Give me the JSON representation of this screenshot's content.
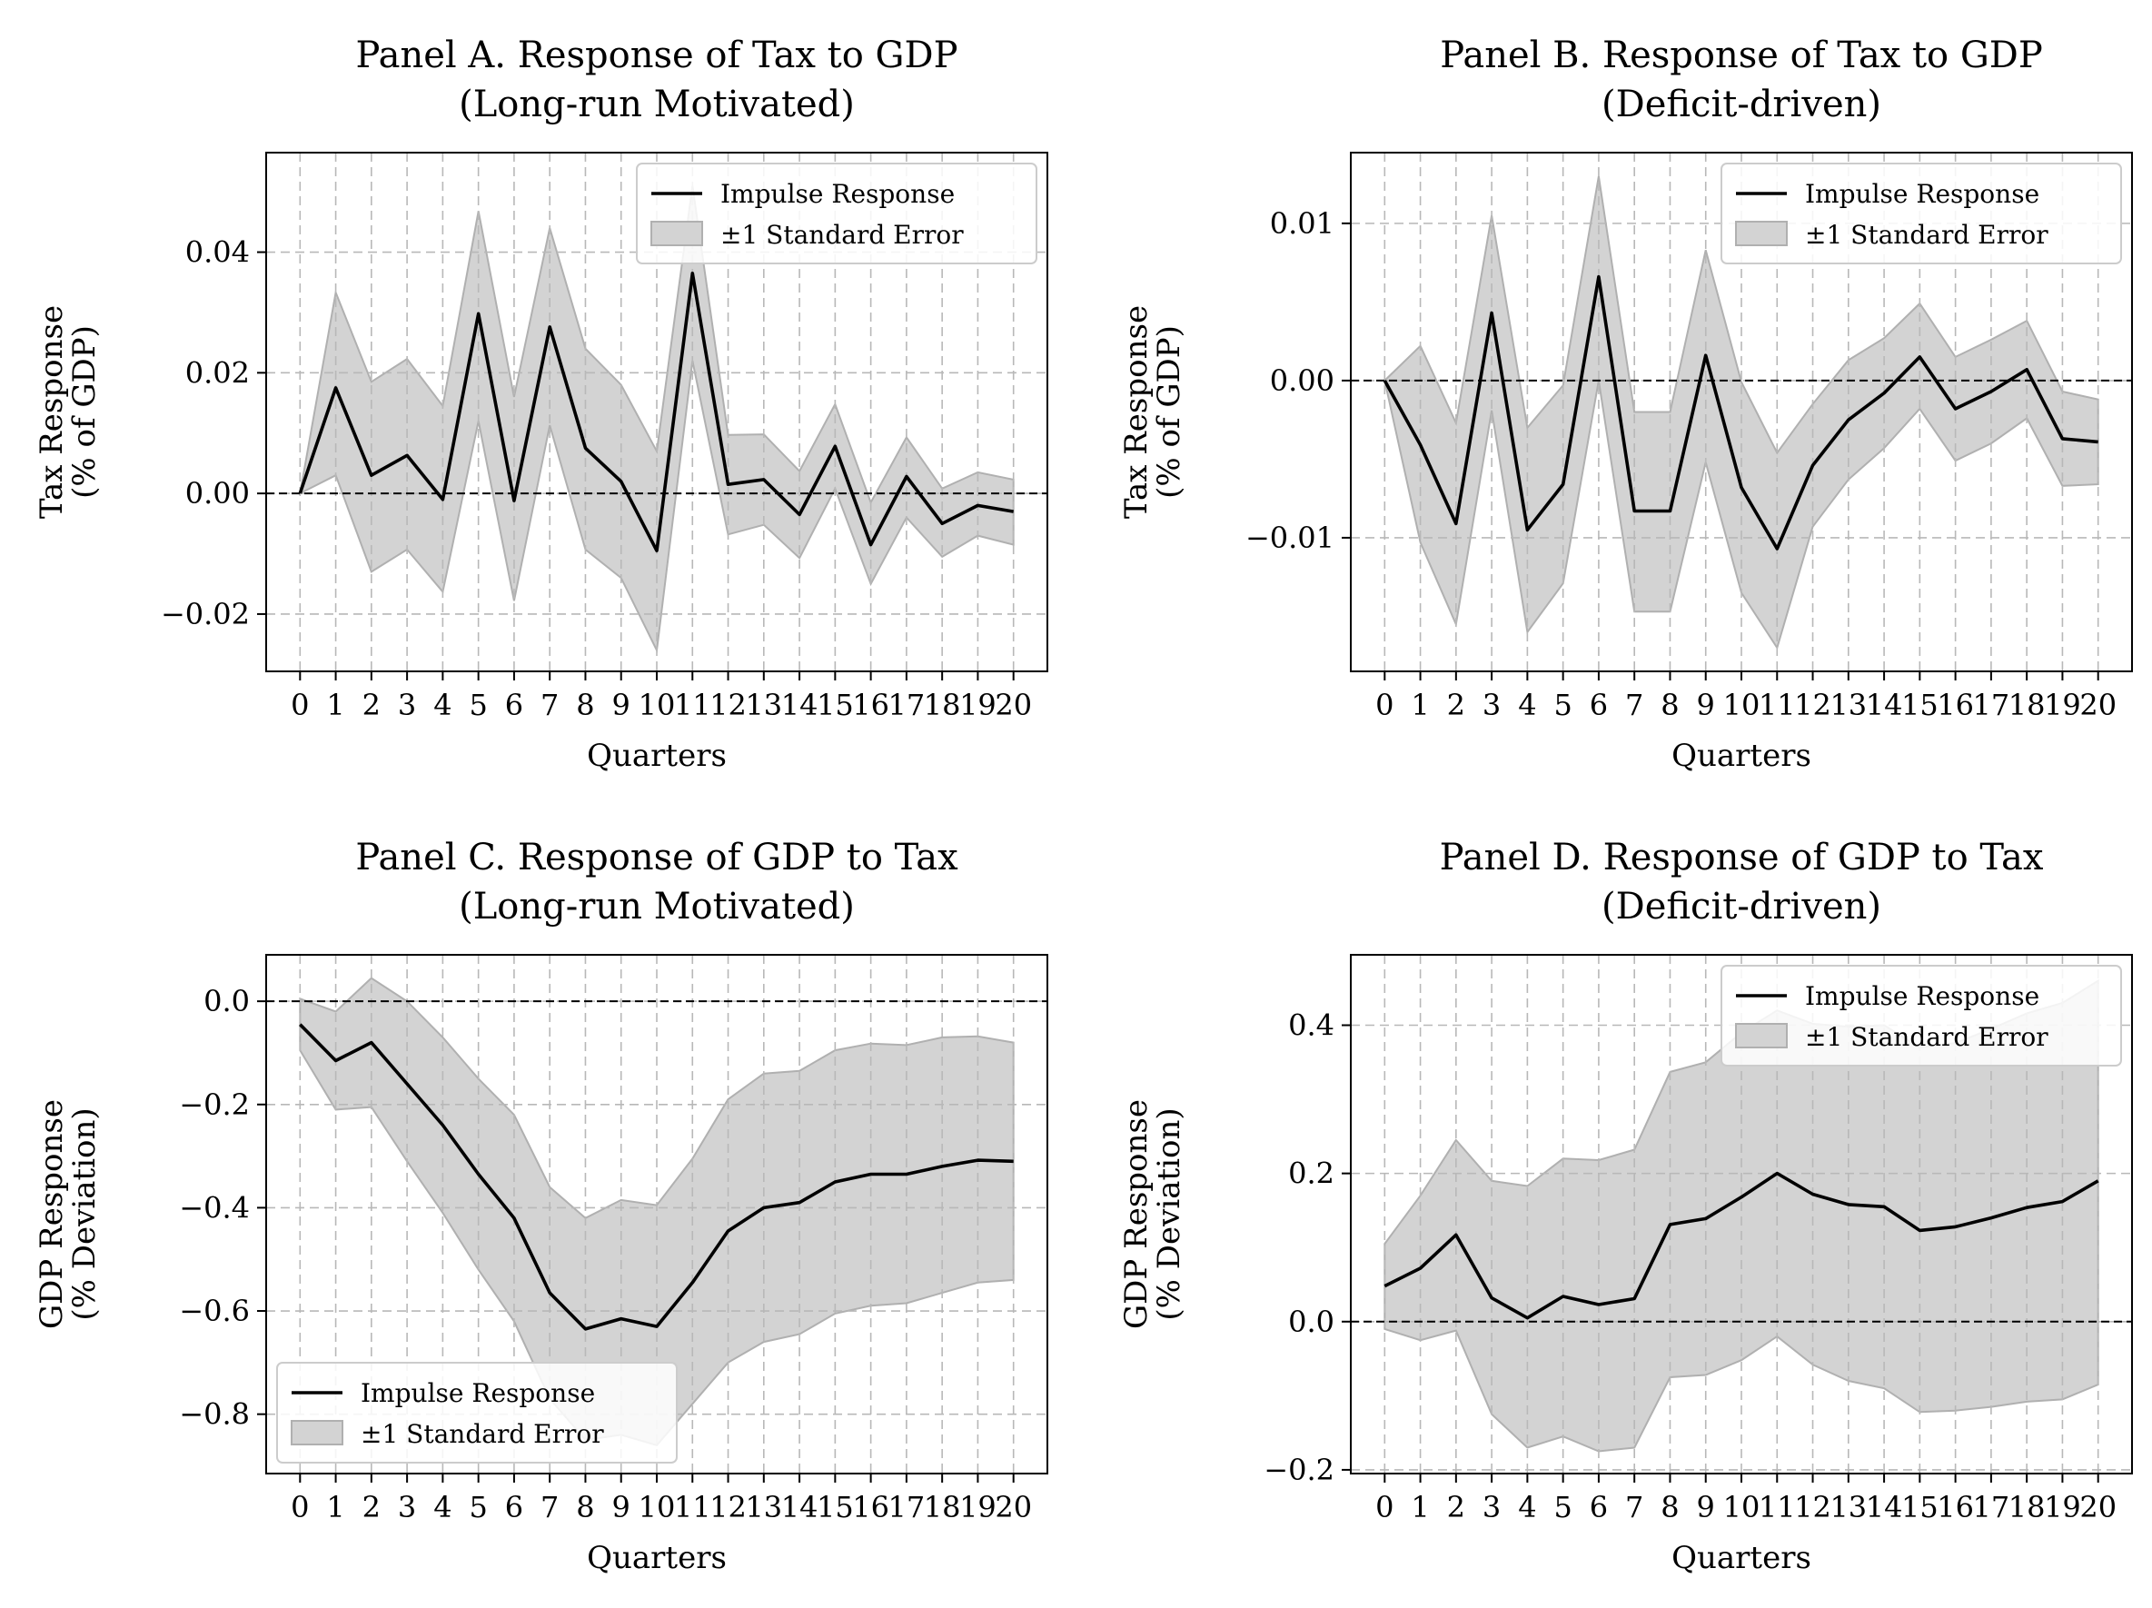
{
  "figure": {
    "panels": [
      {
        "id": "A",
        "title_line1": "Panel A. Response of Tax to GDP",
        "title_line2": "(Long-run Motivated)",
        "xlabel": "Quarters",
        "ylabel_line1": "Tax Response",
        "ylabel_line2": "(% of GDP)",
        "legend": {
          "line_label": "Impulse Response",
          "band_label": "±1 Standard Error",
          "placement": "top-right"
        },
        "yticks": [
          -0.02,
          0.0,
          0.02,
          0.04
        ],
        "ytick_labels": [
          "−0.02",
          "0.00",
          "0.02",
          "0.04"
        ]
      },
      {
        "id": "B",
        "title_line1": "Panel B. Response of Tax to GDP",
        "title_line2": "(Deficit-driven)",
        "xlabel": "Quarters",
        "ylabel_line1": "Tax Response",
        "ylabel_line2": "(% of GDP)",
        "legend": {
          "line_label": "Impulse Response",
          "band_label": "±1 Standard Error",
          "placement": "top-right"
        },
        "yticks": [
          -0.01,
          0.0,
          0.01
        ],
        "ytick_labels": [
          "−0.01",
          "0.00",
          "0.01"
        ]
      },
      {
        "id": "C",
        "title_line1": "Panel C. Response of GDP to Tax",
        "title_line2": "(Long-run Motivated)",
        "xlabel": "Quarters",
        "ylabel_line1": "GDP Response",
        "ylabel_line2": "(% Deviation)",
        "legend": {
          "line_label": "Impulse Response",
          "band_label": "±1 Standard Error",
          "placement": "bottom-left"
        },
        "yticks": [
          -0.8,
          -0.6,
          -0.4,
          -0.2,
          0.0
        ],
        "ytick_labels": [
          "−0.8",
          "−0.6",
          "−0.4",
          "−0.2",
          "0.0"
        ]
      },
      {
        "id": "D",
        "title_line1": "Panel D. Response of GDP to Tax",
        "title_line2": "(Deficit-driven)",
        "xlabel": "Quarters",
        "ylabel_line1": "GDP Response",
        "ylabel_line2": "(% Deviation)",
        "legend": {
          "line_label": "Impulse Response",
          "band_label": "±1 Standard Error",
          "placement": "top-right"
        },
        "yticks": [
          -0.2,
          0.0,
          0.2,
          0.4
        ],
        "ytick_labels": [
          "−0.2",
          "0.0",
          "0.2",
          "0.4"
        ]
      }
    ],
    "xtick_labels": [
      "0",
      "1",
      "2",
      "3",
      "4",
      "5",
      "6",
      "7",
      "8",
      "9",
      "10",
      "11",
      "12",
      "13",
      "14",
      "15",
      "16",
      "17",
      "18",
      "19",
      "20"
    ],
    "colors": {
      "line": "#000000",
      "band": "#d3d3d3",
      "band_edge": "#b0b0b0",
      "grid": "#b8b8b8",
      "zero_line": "#000000"
    }
  },
  "chart_data": [
    {
      "type": "line",
      "panel": "A",
      "x": [
        0,
        1,
        2,
        3,
        4,
        5,
        6,
        7,
        8,
        9,
        10,
        11,
        12,
        13,
        14,
        15,
        16,
        17,
        18,
        19,
        20
      ],
      "series": [
        {
          "name": "Impulse Response",
          "values": [
            0.0,
            0.0175,
            0.003,
            0.0063,
            -0.001,
            0.0298,
            -0.0012,
            0.0276,
            0.0075,
            0.002,
            -0.0095,
            0.0365,
            0.0015,
            0.0023,
            -0.0035,
            0.0078,
            -0.0085,
            0.0028,
            -0.005,
            -0.002,
            -0.003
          ]
        },
        {
          "name": "±1 Standard Error",
          "lower": [
            0.0,
            0.003,
            -0.013,
            -0.0093,
            -0.0163,
            0.012,
            -0.0178,
            0.0113,
            -0.0093,
            -0.014,
            -0.026,
            0.022,
            -0.0068,
            -0.0052,
            -0.0107,
            0.0008,
            -0.015,
            -0.004,
            -0.0105,
            -0.007,
            -0.0085
          ],
          "upper": [
            0.0,
            0.0333,
            0.0185,
            0.0223,
            0.0145,
            0.0468,
            0.016,
            0.044,
            0.024,
            0.018,
            0.007,
            0.051,
            0.0097,
            0.0098,
            0.0037,
            0.0148,
            -0.0015,
            0.0093,
            0.0008,
            0.0035,
            0.0023
          ]
        }
      ],
      "xlabel": "Quarters",
      "ylabel": "Tax Response (% of GDP)",
      "xlim": [
        -0.95,
        20.95
      ],
      "ylim": [
        -0.0295,
        0.0565
      ],
      "grid": true,
      "legend": "top-right"
    },
    {
      "type": "line",
      "panel": "B",
      "x": [
        0,
        1,
        2,
        3,
        4,
        5,
        6,
        7,
        8,
        9,
        10,
        11,
        12,
        13,
        14,
        15,
        16,
        17,
        18,
        19,
        20
      ],
      "series": [
        {
          "name": "Impulse Response",
          "values": [
            0.0,
            -0.0041,
            -0.0091,
            0.0043,
            -0.0095,
            -0.0066,
            0.0066,
            -0.0083,
            -0.0083,
            0.0016,
            -0.0068,
            -0.0107,
            -0.0054,
            -0.0025,
            -0.0008,
            0.0015,
            -0.0018,
            -0.0007,
            0.0007,
            -0.0037,
            -0.0039
          ]
        },
        {
          "name": "±1 Standard Error",
          "lower": [
            0.0,
            -0.0103,
            -0.0155,
            -0.0019,
            -0.016,
            -0.0129,
            0.0,
            -0.0147,
            -0.0147,
            -0.0052,
            -0.0135,
            -0.017,
            -0.0093,
            -0.0063,
            -0.0043,
            -0.0018,
            -0.0051,
            -0.004,
            -0.0024,
            -0.0067,
            -0.0066
          ],
          "upper": [
            0.0,
            0.0022,
            -0.0027,
            0.0105,
            -0.003,
            -0.0003,
            0.013,
            -0.002,
            -0.002,
            0.0083,
            -0.0001,
            -0.0046,
            -0.0015,
            0.0013,
            0.0027,
            0.0049,
            0.0015,
            0.0026,
            0.0038,
            -0.0007,
            -0.0012
          ]
        }
      ],
      "xlabel": "Quarters",
      "ylabel": "Tax Response (% of GDP)",
      "xlim": [
        -0.95,
        20.95
      ],
      "ylim": [
        -0.0185,
        0.0145
      ],
      "grid": true,
      "legend": "top-right"
    },
    {
      "type": "line",
      "panel": "C",
      "x": [
        0,
        1,
        2,
        3,
        4,
        5,
        6,
        7,
        8,
        9,
        10,
        11,
        12,
        13,
        14,
        15,
        16,
        17,
        18,
        19,
        20
      ],
      "series": [
        {
          "name": "Impulse Response",
          "values": [
            -0.045,
            -0.115,
            -0.08,
            -0.16,
            -0.24,
            -0.335,
            -0.42,
            -0.565,
            -0.635,
            -0.615,
            -0.63,
            -0.545,
            -0.445,
            -0.4,
            -0.39,
            -0.35,
            -0.335,
            -0.335,
            -0.32,
            -0.308,
            -0.31
          ]
        },
        {
          "name": "±1 Standard Error",
          "lower": [
            -0.095,
            -0.21,
            -0.205,
            -0.31,
            -0.41,
            -0.52,
            -0.62,
            -0.77,
            -0.85,
            -0.84,
            -0.86,
            -0.78,
            -0.7,
            -0.66,
            -0.645,
            -0.605,
            -0.59,
            -0.585,
            -0.565,
            -0.545,
            -0.54
          ],
          "upper": [
            0.005,
            -0.02,
            0.045,
            0.0,
            -0.07,
            -0.15,
            -0.22,
            -0.36,
            -0.42,
            -0.385,
            -0.395,
            -0.305,
            -0.19,
            -0.14,
            -0.135,
            -0.095,
            -0.082,
            -0.085,
            -0.07,
            -0.068,
            -0.08
          ]
        }
      ],
      "xlabel": "Quarters",
      "ylabel": "GDP Response (% Deviation)",
      "xlim": [
        -0.95,
        20.95
      ],
      "ylim": [
        -0.915,
        0.09
      ],
      "grid": true,
      "legend": "bottom-left"
    },
    {
      "type": "line",
      "panel": "D",
      "x": [
        0,
        1,
        2,
        3,
        4,
        5,
        6,
        7,
        8,
        9,
        10,
        11,
        12,
        13,
        14,
        15,
        16,
        17,
        18,
        19,
        20
      ],
      "series": [
        {
          "name": "Impulse Response",
          "values": [
            0.048,
            0.072,
            0.117,
            0.032,
            0.005,
            0.034,
            0.023,
            0.031,
            0.131,
            0.139,
            0.168,
            0.2,
            0.172,
            0.158,
            0.155,
            0.123,
            0.128,
            0.14,
            0.154,
            0.162,
            0.19
          ]
        },
        {
          "name": "±1 Standard Error",
          "lower": [
            -0.01,
            -0.025,
            -0.012,
            -0.125,
            -0.17,
            -0.155,
            -0.175,
            -0.17,
            -0.075,
            -0.072,
            -0.052,
            -0.02,
            -0.058,
            -0.08,
            -0.09,
            -0.122,
            -0.12,
            -0.115,
            -0.108,
            -0.105,
            -0.085
          ],
          "upper": [
            0.105,
            0.17,
            0.245,
            0.19,
            0.183,
            0.22,
            0.218,
            0.232,
            0.337,
            0.35,
            0.39,
            0.42,
            0.402,
            0.398,
            0.4,
            0.37,
            0.376,
            0.395,
            0.416,
            0.43,
            0.46
          ]
        }
      ],
      "xlabel": "Quarters",
      "ylabel": "GDP Response (% Deviation)",
      "xlim": [
        -0.95,
        20.95
      ],
      "ylim": [
        -0.205,
        0.495
      ],
      "grid": true,
      "legend": "top-right"
    }
  ]
}
